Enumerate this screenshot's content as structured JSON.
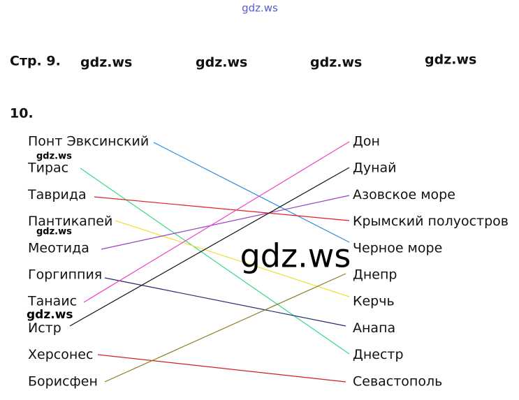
{
  "watermark_top": "gdz.ws",
  "page_label": "Стр. 9.",
  "header_watermarks": [
    "gdz.ws",
    "gdz.ws",
    "gdz.ws",
    "gdz.ws"
  ],
  "task_number": "10.",
  "left_items": [
    "Понт Эвксинский",
    "Тирас",
    "Таврида",
    "Пантикапей",
    "Меотида",
    "Горгиппия",
    "Танаис",
    "Истр",
    "Херсонес",
    "Борисфен"
  ],
  "right_items": [
    "Дон",
    "Дунай",
    "Азовское море",
    "Крымский полуостров",
    "Черное море",
    "Днепр",
    "Керчь",
    "Анапа",
    "Днестр",
    "Севастополь"
  ],
  "small_watermarks": [
    "gdz.ws",
    "gdz.ws"
  ],
  "bold_watermark": "gdz.ws",
  "big_watermark": "gdz.ws"
}
